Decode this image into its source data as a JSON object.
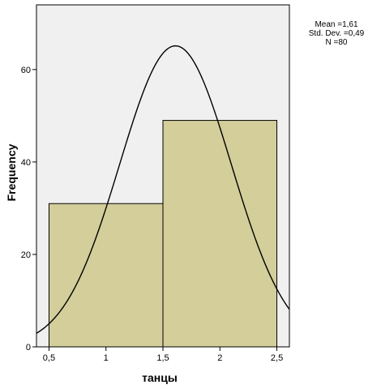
{
  "chart_data": {
    "type": "bar",
    "subtype": "histogram",
    "xlabel": "танцы",
    "ylabel": "Frequency",
    "bins": [
      {
        "from": 0.5,
        "to": 1.5,
        "count": 31
      },
      {
        "from": 1.5,
        "to": 2.5,
        "count": 49
      }
    ],
    "xlim": [
      0.39,
      2.61
    ],
    "ylim": [
      0,
      74
    ],
    "x_ticks": [
      {
        "value": 0.5,
        "label": "0,5"
      },
      {
        "value": 1,
        "label": "1"
      },
      {
        "value": 1.5,
        "label": "1,5"
      },
      {
        "value": 2,
        "label": "2"
      },
      {
        "value": 2.5,
        "label": "2,5"
      }
    ],
    "y_ticks": [
      {
        "value": 0,
        "label": "0"
      },
      {
        "value": 20,
        "label": "20"
      },
      {
        "value": 40,
        "label": "40"
      },
      {
        "value": 60,
        "label": "60"
      }
    ],
    "normal_curve": {
      "mean": 1.61,
      "std_dev": 0.49,
      "n": 80,
      "bin_width": 1
    },
    "stats": {
      "mean": "Mean =1,61",
      "std_dev": "Std. Dev. =0,49",
      "n": "N =80"
    },
    "colors": {
      "plot_background": "#f0f0f0",
      "bar_fill": "#d3ce9a",
      "bar_stroke": "#000000",
      "curve": "#000000"
    },
    "grid": false,
    "legend": "none"
  }
}
